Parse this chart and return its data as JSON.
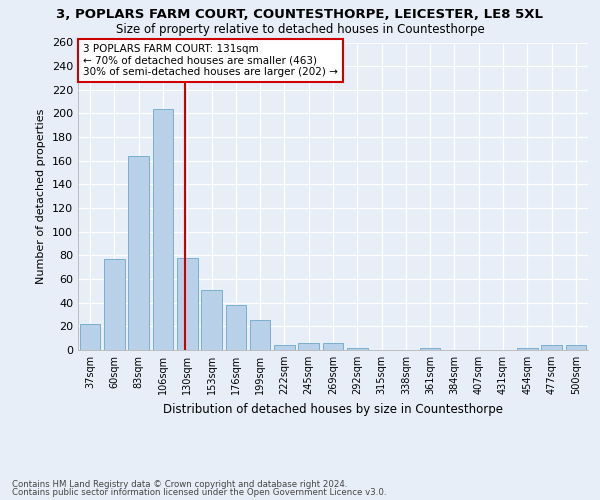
{
  "title1": "3, POPLARS FARM COURT, COUNTESTHORPE, LEICESTER, LE8 5XL",
  "title2": "Size of property relative to detached houses in Countesthorpe",
  "xlabel": "Distribution of detached houses by size in Countesthorpe",
  "ylabel": "Number of detached properties",
  "categories": [
    "37sqm",
    "60sqm",
    "83sqm",
    "106sqm",
    "130sqm",
    "153sqm",
    "176sqm",
    "199sqm",
    "222sqm",
    "245sqm",
    "269sqm",
    "292sqm",
    "315sqm",
    "338sqm",
    "361sqm",
    "384sqm",
    "407sqm",
    "431sqm",
    "454sqm",
    "477sqm",
    "500sqm"
  ],
  "values": [
    22,
    77,
    164,
    204,
    78,
    51,
    38,
    25,
    4,
    6,
    6,
    2,
    0,
    0,
    2,
    0,
    0,
    0,
    2,
    4,
    4
  ],
  "bar_color": "#b8d0e8",
  "bar_edge_color": "#7aaed0",
  "vline_x_index": 4,
  "vline_color": "#cc0000",
  "annotation_text": "3 POPLARS FARM COURT: 131sqm\n← 70% of detached houses are smaller (463)\n30% of semi-detached houses are larger (202) →",
  "annotation_box_color": "white",
  "annotation_box_edge": "#cc0000",
  "ylim": [
    0,
    260
  ],
  "yticks": [
    0,
    20,
    40,
    60,
    80,
    100,
    120,
    140,
    160,
    180,
    200,
    220,
    240,
    260
  ],
  "footer1": "Contains HM Land Registry data © Crown copyright and database right 2024.",
  "footer2": "Contains public sector information licensed under the Open Government Licence v3.0.",
  "bg_color": "#e8eef7",
  "plot_bg_color": "#e8eef7",
  "grid_color": "white",
  "title1_fontsize": 9.5,
  "title2_fontsize": 8.5
}
